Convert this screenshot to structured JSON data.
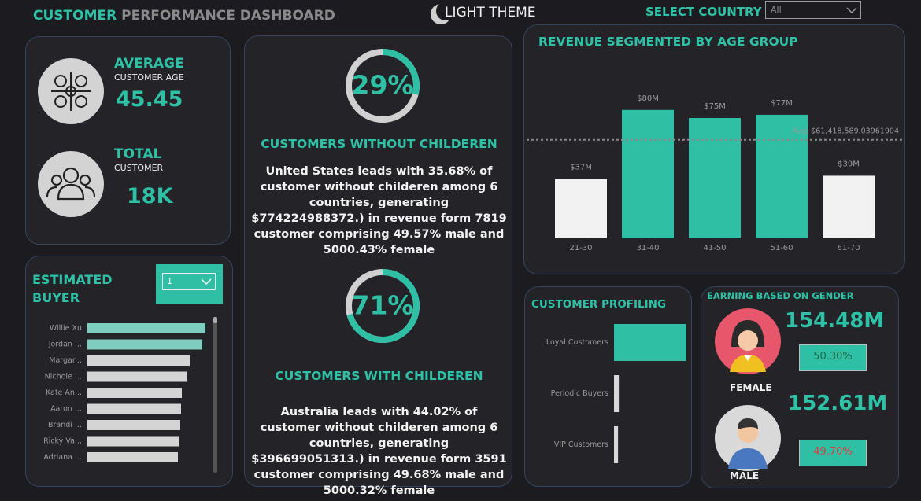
{
  "header": {
    "title_bold": "CUSTOMER",
    "title_rest": "PERFORMANCE DASHBOARD",
    "theme_toggle": "LIGHT THEME",
    "country_label": "SELECT COUNTRY",
    "country_value": "All"
  },
  "kpis": {
    "age_label": "AVERAGE",
    "age_sublabel": "CUSTOMER AGE",
    "age_value": "45.45",
    "total_label": "TOTAL",
    "total_sublabel": "CUSTOMER",
    "total_value": "18K"
  },
  "without_children": {
    "percent": 29,
    "percent_label": "29%",
    "title": "CUSTOMERS WITHOUT CHILDEREN",
    "text": "United States leads with 35.68% of customer without childeren among 6 countries, generating  $774224988372.) in revenue form  7819 customer comprising 49.57% male and 5000.43% female"
  },
  "with_children": {
    "percent": 71,
    "percent_label": "71%",
    "title": "CUSTOMERS WITH CHILDEREN",
    "text": "Australia leads with 44.02% of customer without childeren among 6 countries, generating  $396699051313.) in revenue form  3591 customer comprising 49.68% male and 5000.32% female"
  },
  "age_chart": {
    "type": "bar",
    "title": "REVENUE SEGMENTED BY AGE GROUP",
    "categories": [
      "21-30",
      "31-40",
      "41-50",
      "51-60",
      "61-70"
    ],
    "values": [
      37000000,
      80000000,
      75000000,
      77000000,
      39000000
    ],
    "value_labels": [
      "$37M",
      "$80M",
      "$75M",
      "$77M",
      "$39M"
    ],
    "colors": [
      "#f2f2f2",
      "#2fbfa5",
      "#2fbfa5",
      "#2fbfa5",
      "#f2f2f2"
    ],
    "average": 61418589.03961904,
    "average_label": "Avg: $61,418,589.03961904"
  },
  "buyer_chart": {
    "type": "bar",
    "orientation": "horizontal",
    "title": "ESTIMATED BUYER",
    "filter_value": "1",
    "categories": [
      "Willie Xu",
      "Jordan ...",
      "Margar...",
      "Nichole ...",
      "Kate An...",
      "Aaron ...",
      "Brandi ...",
      "Ricky Va...",
      "Adriana ..."
    ],
    "values": [
      150,
      146,
      130,
      126,
      120,
      119,
      118,
      116,
      115
    ],
    "colors": [
      "#7fcdbf",
      "#7fcdbf",
      "#d4d4d4",
      "#d4d4d4",
      "#d4d4d4",
      "#d4d4d4",
      "#d4d4d4",
      "#d4d4d4",
      "#d4d4d4"
    ]
  },
  "profiling_chart": {
    "type": "bar",
    "orientation": "horizontal",
    "title": "CUSTOMER PROFILING",
    "categories": [
      "Loyal Customers",
      "Periodic Buyers",
      "VIP Customers"
    ],
    "values": [
      90,
      6,
      5
    ],
    "colors": [
      "#2fbfa5",
      "#d9d9d9",
      "#d9d9d9"
    ]
  },
  "gender": {
    "title": "EARNING BASED ON GENDER",
    "female_value": "154.48M",
    "female_percent": "50.30%",
    "female_label": "FEMALE",
    "male_value": "152.61M",
    "male_percent": "49.70%",
    "male_label": "MALE"
  }
}
